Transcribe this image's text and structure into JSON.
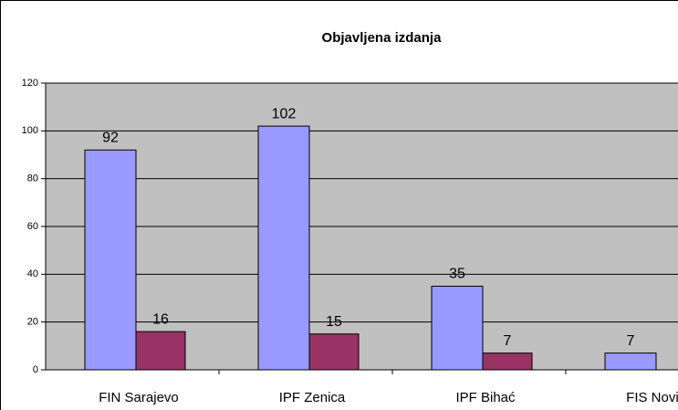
{
  "chart_data": {
    "type": "bar",
    "title": "Objavljena izdanja",
    "categories": [
      "FIN Sarajevo",
      "IPF Zenica",
      "IPF Bihać",
      "FIS Novi P"
    ],
    "series": [
      {
        "color": "#9999ff",
        "values": [
          92,
          102,
          35,
          7
        ]
      },
      {
        "color": "#993366",
        "values": [
          16,
          15,
          7,
          null
        ]
      }
    ],
    "ylim": [
      0,
      120
    ],
    "yticks": [
      0,
      20,
      40,
      60,
      80,
      100,
      120
    ],
    "grid": true
  }
}
